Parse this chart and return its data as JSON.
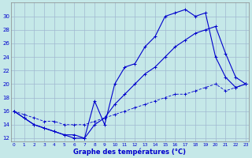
{
  "title": "Graphe des températures (°C)",
  "background_color": "#c5e8e8",
  "grid_color": "#a0b8d0",
  "line_color": "#0000cc",
  "x_ticks": [
    0,
    1,
    2,
    3,
    4,
    5,
    6,
    7,
    8,
    9,
    10,
    11,
    12,
    13,
    14,
    15,
    16,
    17,
    18,
    19,
    20,
    21,
    22,
    23
  ],
  "ylim": [
    11.5,
    32
  ],
  "yticks": [
    12,
    14,
    16,
    18,
    20,
    22,
    24,
    26,
    28,
    30
  ],
  "series1_x": [
    0,
    1,
    2,
    3,
    4,
    5,
    6,
    7,
    8,
    9,
    10,
    11,
    12,
    13,
    14,
    15,
    16,
    17,
    18,
    19,
    20,
    21,
    22,
    23
  ],
  "series1_y": [
    16,
    15,
    14,
    13.5,
    13,
    12.5,
    12,
    12,
    17.5,
    14,
    20,
    22.5,
    23,
    25.5,
    27,
    30,
    30.5,
    31,
    30,
    30.5,
    24,
    21,
    19.5,
    20
  ],
  "series2_x": [
    0,
    1,
    2,
    3,
    4,
    5,
    6,
    7,
    8,
    9,
    10,
    11,
    12,
    13,
    14,
    15,
    16,
    17,
    18,
    19,
    20,
    21,
    22,
    23
  ],
  "series2_y": [
    16,
    15,
    14,
    13.5,
    13,
    12.5,
    12.5,
    12,
    14,
    15,
    17,
    18.5,
    20,
    21.5,
    22.5,
    24,
    25.5,
    26.5,
    27.5,
    28,
    28.5,
    24.5,
    21,
    20
  ],
  "series3_x": [
    0,
    1,
    2,
    3,
    4,
    5,
    6,
    7,
    8,
    9,
    10,
    11,
    12,
    13,
    14,
    15,
    16,
    17,
    18,
    19,
    20,
    21,
    22,
    23
  ],
  "series3_y": [
    16,
    15.5,
    15,
    14.5,
    14.5,
    14,
    14,
    14,
    14.5,
    15,
    15.5,
    16,
    16.5,
    17,
    17.5,
    18,
    18.5,
    18.5,
    19,
    19.5,
    20,
    19,
    19.5,
    20
  ]
}
